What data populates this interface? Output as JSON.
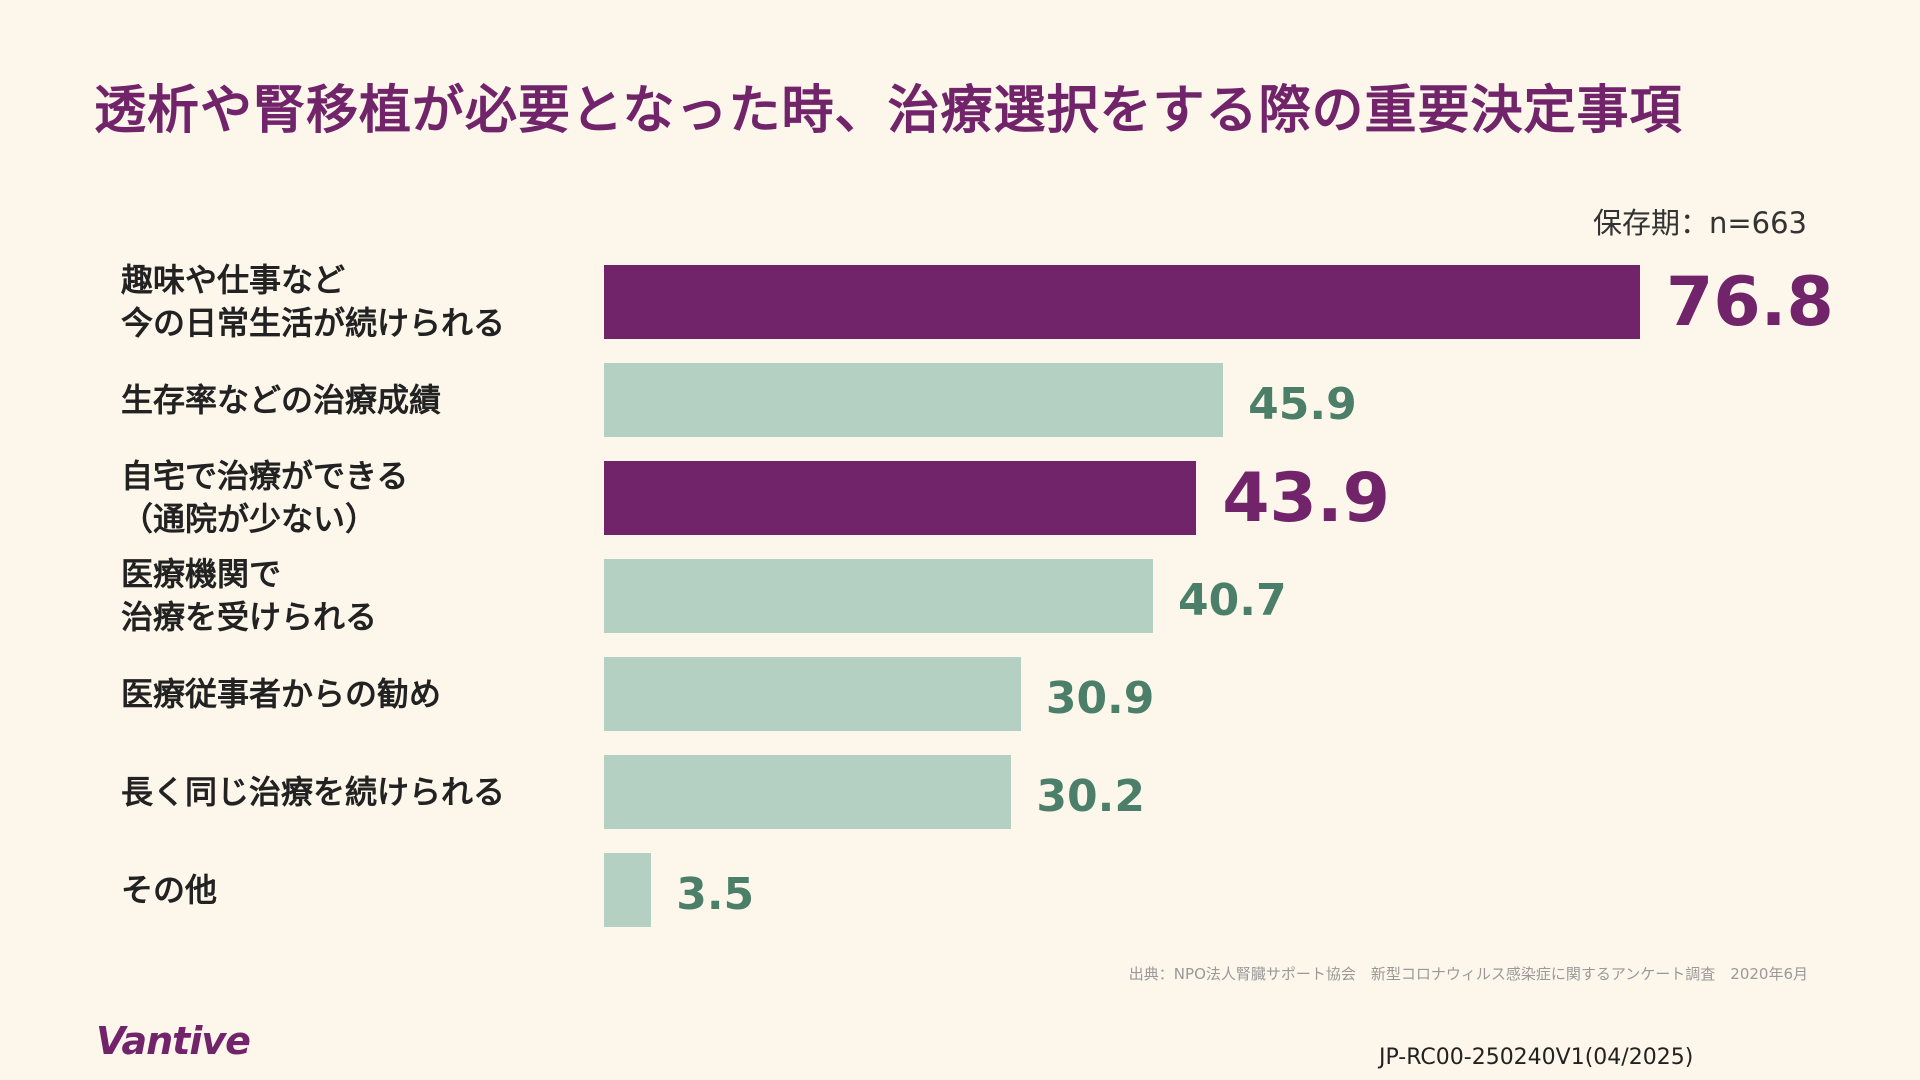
{
  "title": "透析や腎移植が必要となった時、治療選択をする際の重要決定事項",
  "sample_note": "保存期：n=663",
  "source": "出典：NPO法人腎臓サポート協会　新型コロナウィルス感染症に関するアンケート調査　2020年6月",
  "logo_text": "Vantive",
  "doc_id": "JP-RC00-250240V1(04/2025)",
  "colors": {
    "highlight": "#72246a",
    "normal_bar": "#b4d0c3",
    "normal_value": "#4b7f69",
    "background": "#fdf7eb"
  },
  "chart_data": {
    "type": "bar",
    "orientation": "horizontal",
    "title": "透析や腎移植が必要となった時、治療選択をする際の重要決定事項",
    "categories": [
      "趣味や仕事など\n今の日常生活が続けられる",
      "生存率などの治療成績",
      "自宅で治療ができる\n（通院が少ない）",
      "医療機関で\n治療を受けられる",
      "医療従事者からの勧め",
      "長く同じ治療を続けられる",
      "その他"
    ],
    "values": [
      76.8,
      45.9,
      43.9,
      40.7,
      30.9,
      30.2,
      3.5
    ],
    "highlighted": [
      true,
      false,
      true,
      false,
      false,
      false,
      false
    ],
    "xlim": [
      0,
      76.8
    ],
    "grid": false,
    "legend": "none"
  }
}
